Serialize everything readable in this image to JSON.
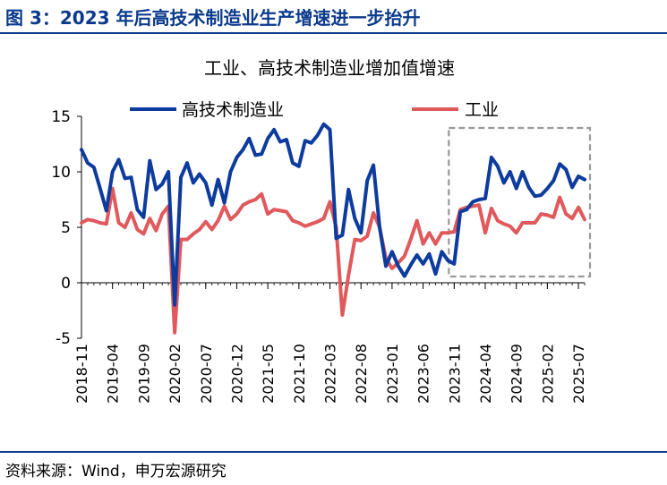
{
  "figure_title": "图 3：2023 年后高技术制造业生产增速进一步抬升",
  "source_note": "资料来源：Wind，申万宏源研究",
  "colors": {
    "high_tech": "#0d3b9e",
    "industry": "#e0595c",
    "rule": "#0b3a8c",
    "highlight_box": "#999999"
  },
  "chart_data": {
    "type": "line",
    "title": "工业、高技术制造业增加值增速",
    "xlabel": "",
    "ylabel": "",
    "ylim": [
      -5,
      15
    ],
    "yticks": [
      -5,
      0,
      5,
      10,
      15
    ],
    "grid": false,
    "legend_position": "top",
    "x_tick_labels": [
      "2018-11",
      "2019-04",
      "2019-09",
      "2020-02",
      "2020-07",
      "2020-12",
      "2021-05",
      "2021-10",
      "2022-03",
      "2022-08",
      "2023-01",
      "2023-06",
      "2023-11",
      "2024-04",
      "2024-09",
      "2025-02",
      "2025-07"
    ],
    "x": [
      "2018-11",
      "2018-12",
      "2019-01",
      "2019-02",
      "2019-03",
      "2019-04",
      "2019-05",
      "2019-06",
      "2019-07",
      "2019-08",
      "2019-09",
      "2019-10",
      "2019-11",
      "2019-12",
      "2020-01",
      "2020-02",
      "2020-03",
      "2020-04",
      "2020-05",
      "2020-06",
      "2020-07",
      "2020-08",
      "2020-09",
      "2020-10",
      "2020-11",
      "2020-12",
      "2021-01",
      "2021-02",
      "2021-03",
      "2021-04",
      "2021-05",
      "2021-06",
      "2021-07",
      "2021-08",
      "2021-09",
      "2021-10",
      "2021-11",
      "2021-12",
      "2022-01",
      "2022-02",
      "2022-03",
      "2022-04",
      "2022-05",
      "2022-06",
      "2022-07",
      "2022-08",
      "2022-09",
      "2022-10",
      "2022-11",
      "2022-12",
      "2023-01",
      "2023-02",
      "2023-03",
      "2023-04",
      "2023-05",
      "2023-06",
      "2023-07",
      "2023-08",
      "2023-09",
      "2023-10",
      "2023-11",
      "2023-12",
      "2024-01",
      "2024-02",
      "2024-03",
      "2024-04",
      "2024-05",
      "2024-06",
      "2024-07",
      "2024-08",
      "2024-09",
      "2024-10",
      "2024-11",
      "2024-12",
      "2025-01",
      "2025-02",
      "2025-03",
      "2025-04",
      "2025-05",
      "2025-06",
      "2025-07",
      "2025-08"
    ],
    "series": [
      {
        "name": "高技术制造业",
        "values": [
          12.0,
          10.8,
          10.4,
          8.5,
          6.5,
          10.0,
          11.1,
          9.4,
          9.5,
          6.6,
          5.9,
          11.0,
          8.4,
          8.9,
          10.0,
          -2.0,
          9.5,
          10.8,
          9.0,
          9.8,
          9.0,
          7.0,
          9.3,
          7.2,
          10.0,
          11.3,
          12.0,
          13.0,
          11.5,
          11.6,
          13.0,
          13.8,
          12.7,
          12.9,
          10.8,
          10.5,
          12.8,
          12.6,
          13.3,
          14.3,
          13.8,
          4.0,
          4.3,
          8.4,
          5.8,
          4.5,
          9.2,
          10.6,
          5.0,
          1.5,
          2.8,
          1.5,
          0.6,
          1.6,
          2.5,
          1.7,
          2.6,
          0.8,
          2.8,
          2.0,
          1.7,
          6.4,
          6.6,
          7.3,
          7.5,
          7.6,
          11.3,
          10.5,
          9.0,
          10.0,
          8.5,
          10.0,
          8.6,
          7.8,
          7.9,
          8.5,
          9.2,
          10.7,
          10.2,
          8.6,
          9.6,
          9.3
        ]
      },
      {
        "name": "工业",
        "values": [
          5.4,
          5.7,
          5.6,
          5.4,
          5.3,
          8.5,
          5.4,
          5.0,
          6.3,
          4.8,
          4.4,
          5.8,
          4.7,
          6.2,
          6.9,
          -4.5,
          3.9,
          3.9,
          4.4,
          4.8,
          5.5,
          4.8,
          5.6,
          6.9,
          5.7,
          6.2,
          7.0,
          7.3,
          7.5,
          8.0,
          6.2,
          6.6,
          6.5,
          6.4,
          5.6,
          5.4,
          5.1,
          5.3,
          5.5,
          5.8,
          7.3,
          5.0,
          -2.9,
          0.7,
          3.9,
          3.8,
          4.2,
          6.3,
          5.0,
          2.2,
          1.3,
          1.8,
          2.4,
          3.9,
          5.6,
          3.5,
          4.5,
          3.5,
          4.5,
          4.5,
          4.6,
          6.6,
          6.8,
          6.9,
          7.0,
          4.5,
          6.7,
          5.6,
          5.3,
          5.1,
          4.5,
          5.4,
          5.4,
          5.4,
          6.2,
          6.1,
          5.9,
          7.7,
          6.2,
          5.8,
          6.8,
          5.7
        ]
      }
    ],
    "annotations": [
      {
        "type": "dashed_box",
        "from": "2023-11",
        "to": "2025-08"
      }
    ]
  }
}
